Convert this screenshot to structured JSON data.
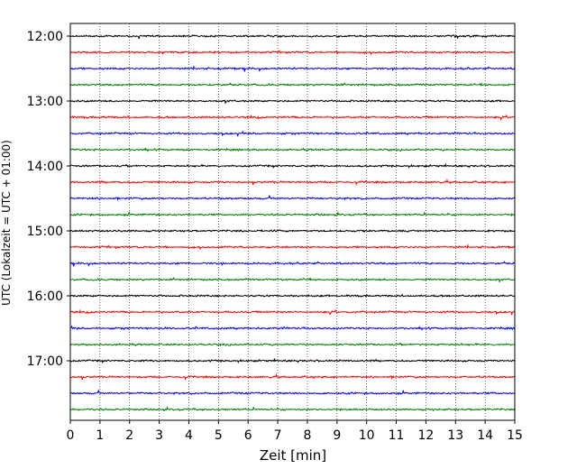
{
  "chart_data": {
    "type": "line",
    "title": "",
    "xlabel": "Zeit  [min]",
    "ylabel": "UTC (Lokalzeit = UTC + 01:00)",
    "xlim": [
      0,
      15
    ],
    "x_ticks": [
      "0",
      "1",
      "2",
      "3",
      "4",
      "5",
      "6",
      "7",
      "8",
      "9",
      "10",
      "11",
      "12",
      "13",
      "14",
      "15"
    ],
    "y_ticks": [
      "12:00",
      "13:00",
      "14:00",
      "15:00",
      "16:00",
      "17:00"
    ],
    "grid": "vertical dotted",
    "trace_colors": [
      "#000000",
      "#ff0000",
      "#0000ff",
      "#007f00"
    ],
    "trace_start_times": [
      "12:00",
      "12:15",
      "12:30",
      "12:45",
      "13:00",
      "13:15",
      "13:30",
      "13:45",
      "14:00",
      "14:15",
      "14:30",
      "14:45",
      "15:00",
      "15:15",
      "15:30",
      "15:45",
      "16:00",
      "16:15",
      "16:30",
      "16:45",
      "17:00",
      "17:15",
      "17:30",
      "17:45"
    ],
    "trace_minutes_per_line": 15
  }
}
